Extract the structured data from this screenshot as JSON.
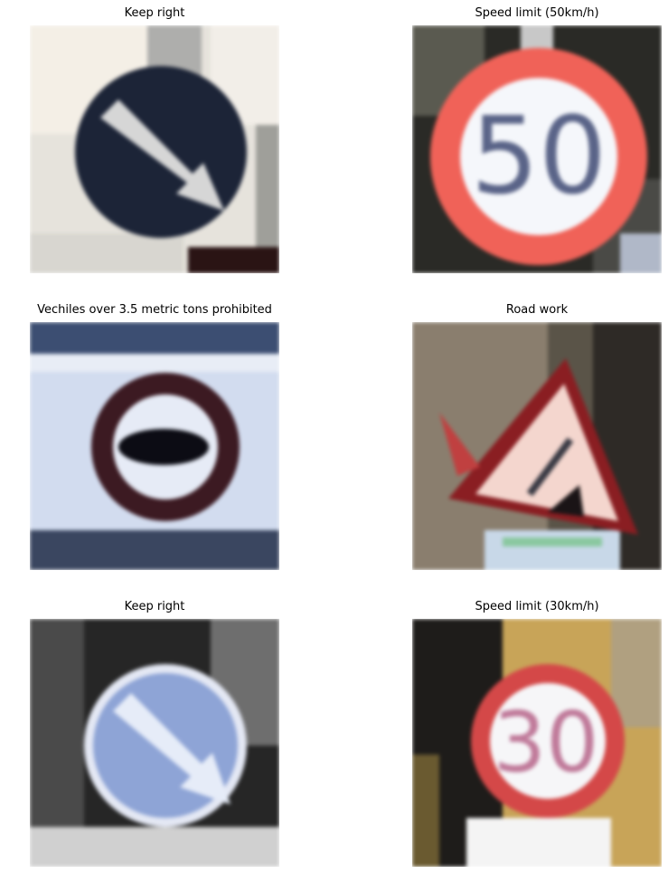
{
  "panels": [
    {
      "title": "Keep right",
      "icon": "keep-right-sign-icon"
    },
    {
      "title": "Speed limit (50km/h)",
      "icon": "speed-limit-50-sign-icon",
      "sign_text": "50"
    },
    {
      "title": "Vechiles over 3.5 metric tons prohibited",
      "icon": "vehicles-over-3-5-tons-prohibited-sign-icon"
    },
    {
      "title": "Road work",
      "icon": "road-work-sign-icon"
    },
    {
      "title": "Keep right",
      "icon": "keep-right-sign-icon"
    },
    {
      "title": "Speed limit (30km/h)",
      "icon": "speed-limit-30-sign-icon",
      "sign_text": "30"
    }
  ]
}
